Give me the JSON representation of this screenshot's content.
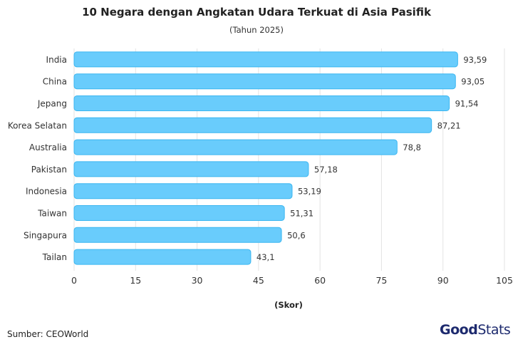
{
  "chart_data": {
    "type": "bar",
    "orientation": "horizontal",
    "title": "10 Negara dengan Angkatan Udara Terkuat di Asia Pasifik",
    "subtitle": "(Tahun 2025)",
    "xlabel": "(Skor)",
    "ylabel": "",
    "categories": [
      "India",
      "China",
      "Jepang",
      "Korea Selatan",
      "Australia",
      "Pakistan",
      "Indonesia",
      "Taiwan",
      "Singapura",
      "Tailan"
    ],
    "values": [
      93.59,
      93.05,
      91.54,
      87.21,
      78.8,
      57.18,
      53.19,
      51.31,
      50.6,
      43.1
    ],
    "value_labels": [
      "93,59",
      "93,05",
      "91,54",
      "87,21",
      "78,8",
      "57,18",
      "53,19",
      "51,31",
      "50,6",
      "43,1"
    ],
    "xlim": [
      0,
      105
    ],
    "xticks": [
      0,
      15,
      30,
      45,
      60,
      75,
      90,
      105
    ],
    "grid": "vertical",
    "bar_color": "#69ccfc",
    "bar_stroke": "#3bb6f0"
  },
  "footer": {
    "source": "Sumber: CEOWorld",
    "logo_good": "Good",
    "logo_stats": "Stats"
  }
}
